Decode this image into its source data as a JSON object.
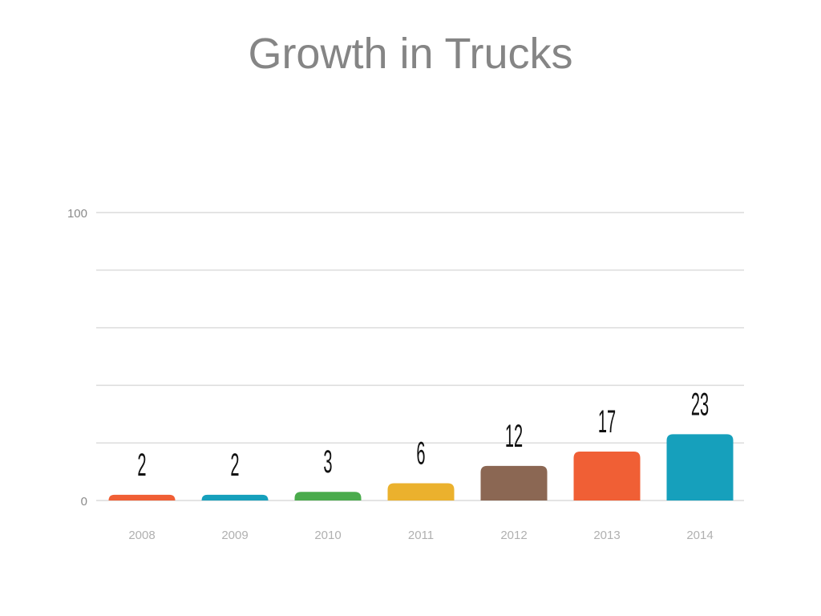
{
  "chart_data": {
    "type": "bar",
    "title": "Growth in Trucks",
    "xlabel": "",
    "ylabel": "",
    "categories": [
      "2008",
      "2009",
      "2010",
      "2011",
      "2012",
      "2013",
      "2014"
    ],
    "values": [
      2,
      2,
      3,
      6,
      12,
      17,
      23
    ],
    "colors": [
      "#f05f35",
      "#16a0bc",
      "#4aab4c",
      "#ebb12d",
      "#8b6753",
      "#f05f35",
      "#16a0bc"
    ],
    "ylim": [
      0,
      100
    ],
    "yticks_labeled": [
      0,
      100
    ],
    "gridlines": [
      0,
      20,
      40,
      60,
      80,
      100
    ],
    "grid": true,
    "legend": "none"
  }
}
